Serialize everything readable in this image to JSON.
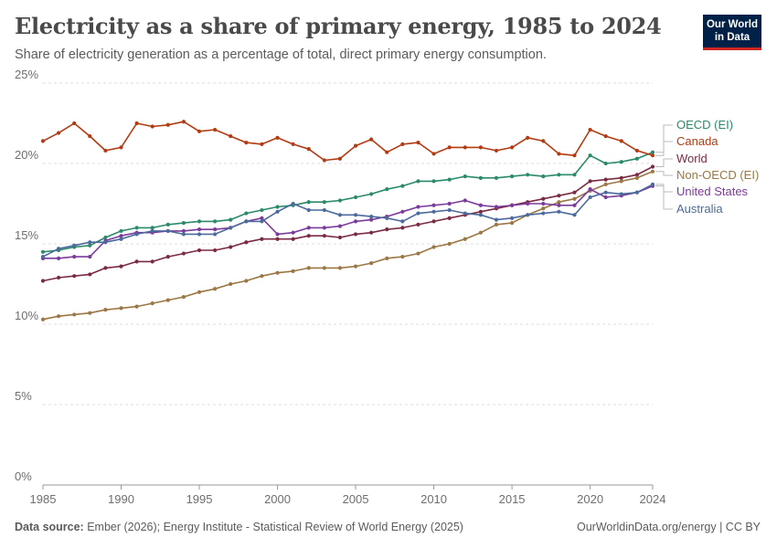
{
  "header": {
    "title": "Electricity as a share of primary energy, 1985 to 2024",
    "subtitle": "Share of electricity generation as a percentage of total, direct primary energy consumption."
  },
  "logo": {
    "line1": "Our World",
    "line2": "in Data",
    "bg_color": "#002147",
    "accent_color": "#ce261e"
  },
  "footer": {
    "source_label": "Data source:",
    "source_text": "Ember (2026); Energy Institute - Statistical Review of World Energy (2025)",
    "right_text": "OurWorldinData.org/energy | CC BY"
  },
  "chart_data": {
    "type": "line",
    "x": [
      1985,
      1986,
      1987,
      1988,
      1989,
      1990,
      1991,
      1992,
      1993,
      1994,
      1995,
      1996,
      1997,
      1998,
      1999,
      2000,
      2001,
      2002,
      2003,
      2004,
      2005,
      2006,
      2007,
      2008,
      2009,
      2010,
      2011,
      2012,
      2013,
      2014,
      2015,
      2016,
      2017,
      2018,
      2019,
      2020,
      2021,
      2022,
      2023,
      2024
    ],
    "ylim": [
      0,
      25
    ],
    "xlim": [
      1985,
      2024
    ],
    "y_ticks": [
      0,
      5,
      10,
      15,
      20,
      25
    ],
    "y_tick_labels": [
      "0%",
      "5%",
      "10%",
      "15%",
      "20%",
      "25%"
    ],
    "x_ticks": [
      1985,
      1990,
      1995,
      2000,
      2005,
      2010,
      2015,
      2020,
      2024
    ],
    "x_tick_labels": [
      "1985",
      "1990",
      "1995",
      "2000",
      "2005",
      "2010",
      "2015",
      "2020",
      "2024"
    ],
    "grid": "horizontal-dashed",
    "legend_position": "right-end-labels",
    "series": [
      {
        "name": "OECD (EI)",
        "color": "#2a8a69",
        "values": [
          14.5,
          14.6,
          14.8,
          14.9,
          15.4,
          15.8,
          16.0,
          16.0,
          16.2,
          16.3,
          16.4,
          16.4,
          16.5,
          16.9,
          17.1,
          17.3,
          17.4,
          17.6,
          17.6,
          17.7,
          17.9,
          18.1,
          18.4,
          18.6,
          18.9,
          18.9,
          19.0,
          19.2,
          19.1,
          19.1,
          19.2,
          19.3,
          19.2,
          19.3,
          19.3,
          20.5,
          20.0,
          20.1,
          20.3,
          20.7
        ]
      },
      {
        "name": "Canada",
        "color": "#b33b12",
        "values": [
          21.4,
          21.9,
          22.5,
          21.7,
          20.8,
          21.0,
          22.5,
          22.3,
          22.4,
          22.6,
          22.0,
          22.1,
          21.7,
          21.3,
          21.2,
          21.6,
          21.2,
          20.9,
          20.2,
          20.3,
          21.1,
          21.5,
          20.7,
          21.2,
          21.3,
          20.6,
          21.0,
          21.0,
          21.0,
          20.8,
          21.0,
          21.6,
          21.4,
          20.6,
          20.5,
          22.1,
          21.7,
          21.4,
          20.8,
          20.5
        ]
      },
      {
        "name": "World",
        "color": "#7a2a41",
        "values": [
          12.7,
          12.9,
          13.0,
          13.1,
          13.5,
          13.6,
          13.9,
          13.9,
          14.2,
          14.4,
          14.6,
          14.6,
          14.8,
          15.1,
          15.3,
          15.3,
          15.3,
          15.5,
          15.5,
          15.4,
          15.6,
          15.7,
          15.9,
          16.0,
          16.2,
          16.4,
          16.6,
          16.8,
          17.0,
          17.2,
          17.4,
          17.6,
          17.8,
          18.0,
          18.2,
          18.9,
          19.0,
          19.1,
          19.3,
          19.8
        ]
      },
      {
        "name": "Non-OECD (EI)",
        "color": "#9a7744",
        "values": [
          10.3,
          10.5,
          10.6,
          10.7,
          10.9,
          11.0,
          11.1,
          11.3,
          11.5,
          11.7,
          12.0,
          12.2,
          12.5,
          12.7,
          13.0,
          13.2,
          13.3,
          13.5,
          13.5,
          13.5,
          13.6,
          13.8,
          14.1,
          14.2,
          14.4,
          14.8,
          15.0,
          15.3,
          15.7,
          16.2,
          16.3,
          16.8,
          17.2,
          17.6,
          17.8,
          18.3,
          18.7,
          18.9,
          19.1,
          19.5
        ]
      },
      {
        "name": "United States",
        "color": "#7b3b9a",
        "values": [
          14.1,
          14.1,
          14.2,
          14.2,
          15.2,
          15.5,
          15.7,
          15.7,
          15.8,
          15.8,
          15.9,
          15.9,
          16.0,
          16.4,
          16.6,
          15.6,
          15.7,
          16.0,
          16.0,
          16.1,
          16.4,
          16.5,
          16.7,
          17.0,
          17.3,
          17.4,
          17.5,
          17.7,
          17.4,
          17.3,
          17.4,
          17.5,
          17.5,
          17.4,
          17.4,
          18.4,
          17.9,
          18.0,
          18.2,
          18.6
        ]
      },
      {
        "name": "Australia",
        "color": "#4c6a9c",
        "values": [
          14.2,
          14.7,
          14.9,
          15.1,
          15.1,
          15.3,
          15.6,
          15.8,
          15.8,
          15.6,
          15.6,
          15.6,
          16.0,
          16.4,
          16.4,
          17.0,
          17.5,
          17.1,
          17.1,
          16.8,
          16.8,
          16.7,
          16.6,
          16.4,
          16.9,
          17.0,
          17.1,
          16.9,
          16.8,
          16.5,
          16.6,
          16.8,
          16.9,
          17.0,
          16.8,
          17.9,
          18.2,
          18.1,
          18.2,
          18.7
        ]
      }
    ]
  }
}
